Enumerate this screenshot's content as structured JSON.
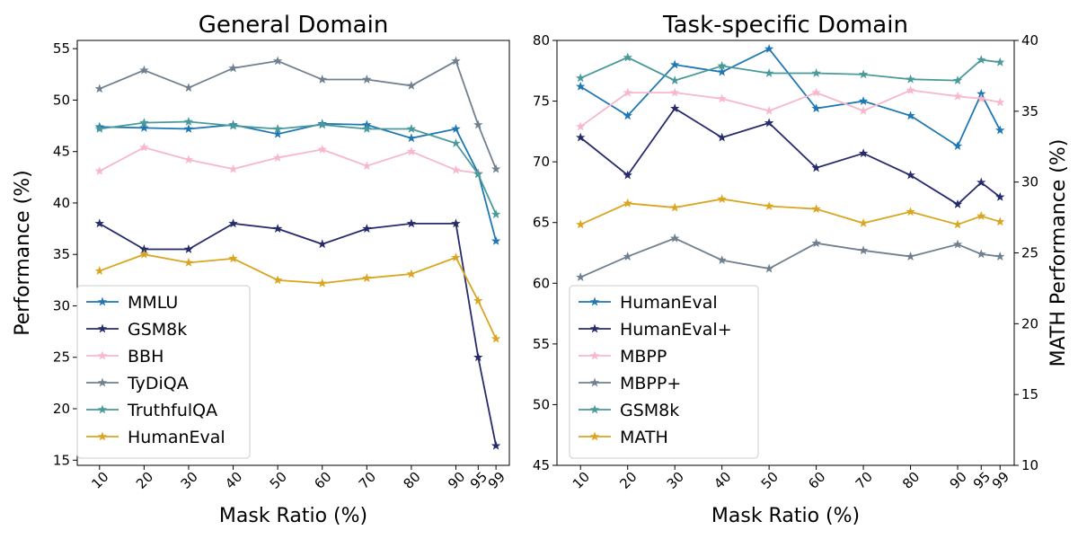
{
  "chart_data": [
    {
      "type": "line",
      "title": "General Domain",
      "xlabel": "Mask Ratio (%)",
      "ylabel": "Performance (%)",
      "x": [
        10,
        20,
        30,
        40,
        50,
        60,
        70,
        80,
        90,
        95,
        99
      ],
      "x_tick_labels": [
        "10",
        "20",
        "30",
        "40",
        "50",
        "60",
        "70",
        "80",
        "90",
        "95",
        "99"
      ],
      "ylim": [
        14.5,
        55.8
      ],
      "y_ticks": [
        15,
        20,
        25,
        30,
        35,
        40,
        45,
        50,
        55
      ],
      "y_tick_labels": [
        "15",
        "20",
        "25",
        "30",
        "35",
        "40",
        "45",
        "50",
        "55"
      ],
      "legend_position": "lower-left",
      "series": [
        {
          "name": "MMLU",
          "color": "#1f77b4",
          "values": [
            47.4,
            47.3,
            47.2,
            47.6,
            46.7,
            47.7,
            47.6,
            46.3,
            47.2,
            42.9,
            36.3
          ]
        },
        {
          "name": "GSM8k",
          "color": "#262b6b",
          "values": [
            38.0,
            35.5,
            35.5,
            38.0,
            37.5,
            36.0,
            37.5,
            38.0,
            38.0,
            25.0,
            16.4
          ]
        },
        {
          "name": "BBH",
          "color": "#f7b7cc",
          "values": [
            43.1,
            45.4,
            44.2,
            43.3,
            44.4,
            45.2,
            43.6,
            45.0,
            43.2,
            42.9,
            null
          ]
        },
        {
          "name": "TyDiQA",
          "color": "#708090",
          "values": [
            51.1,
            52.9,
            51.2,
            53.1,
            53.8,
            52.0,
            52.0,
            51.4,
            53.8,
            47.6,
            43.3
          ]
        },
        {
          "name": "TruthfulQA",
          "color": "#4a9a9a",
          "values": [
            47.2,
            47.8,
            47.9,
            47.5,
            47.2,
            47.6,
            47.2,
            47.2,
            45.8,
            42.8,
            38.9
          ]
        },
        {
          "name": "HumanEval",
          "color": "#daa520",
          "values": [
            33.4,
            35.0,
            34.2,
            34.6,
            32.5,
            32.2,
            32.7,
            33.1,
            34.7,
            30.5,
            26.8
          ]
        }
      ]
    },
    {
      "type": "line",
      "title": "Task-specific Domain",
      "xlabel": "Mask Ratio (%)",
      "ylabel": "",
      "y2label": "MATH Performance (%)",
      "x": [
        10,
        20,
        30,
        40,
        50,
        60,
        70,
        80,
        90,
        95,
        99
      ],
      "x_tick_labels": [
        "10",
        "20",
        "30",
        "40",
        "50",
        "60",
        "70",
        "80",
        "90",
        "95",
        "99"
      ],
      "ylim": [
        45,
        80
      ],
      "y_ticks": [
        45,
        50,
        55,
        60,
        65,
        70,
        75,
        80
      ],
      "y_tick_labels": [
        "45",
        "50",
        "55",
        "60",
        "65",
        "70",
        "75",
        "80"
      ],
      "y2lim": [
        10,
        40
      ],
      "y2_ticks": [
        10,
        15,
        20,
        25,
        30,
        35,
        40
      ],
      "y2_tick_labels": [
        "10",
        "15",
        "20",
        "25",
        "30",
        "35",
        "40"
      ],
      "legend_position": "lower-left",
      "series": [
        {
          "name": "HumanEval",
          "color": "#1f77b4",
          "axis": "left",
          "values": [
            76.2,
            73.8,
            78.0,
            77.4,
            79.3,
            74.4,
            75.0,
            73.8,
            71.3,
            75.6,
            72.6
          ]
        },
        {
          "name": "HumanEval+",
          "color": "#262b6b",
          "axis": "left",
          "values": [
            72.0,
            68.9,
            74.4,
            72.0,
            73.2,
            69.5,
            70.7,
            68.9,
            66.5,
            68.3,
            67.1
          ]
        },
        {
          "name": "MBPP",
          "color": "#f7b7cc",
          "axis": "left",
          "values": [
            72.9,
            75.7,
            75.7,
            75.2,
            74.2,
            75.7,
            74.2,
            75.9,
            75.4,
            75.2,
            74.9
          ]
        },
        {
          "name": "MBPP+",
          "color": "#708090",
          "axis": "left",
          "values": [
            60.5,
            62.2,
            63.7,
            61.9,
            61.2,
            63.3,
            62.7,
            62.2,
            63.2,
            62.4,
            62.2
          ]
        },
        {
          "name": "GSM8k",
          "color": "#4a9a9a",
          "axis": "left",
          "values": [
            76.9,
            78.6,
            76.7,
            77.9,
            77.3,
            77.3,
            77.2,
            76.8,
            76.7,
            78.4,
            78.2
          ]
        },
        {
          "name": "MATH",
          "color": "#daa520",
          "axis": "right",
          "values": [
            27.0,
            28.5,
            28.2,
            28.8,
            28.3,
            28.1,
            27.1,
            27.9,
            27.0,
            27.6,
            27.2
          ]
        }
      ]
    }
  ]
}
